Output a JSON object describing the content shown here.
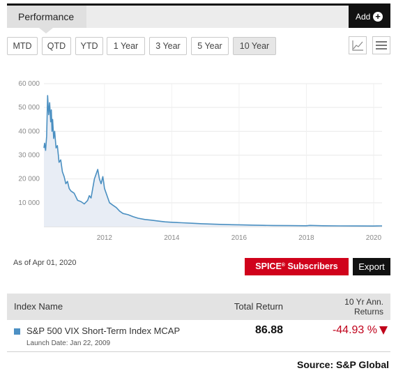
{
  "header": {
    "tab_label": "Performance",
    "add_label": "Add",
    "add_icon": "plus-circle-icon"
  },
  "periods": [
    "MTD",
    "QTD",
    "YTD",
    "1 Year",
    "3 Year",
    "5 Year",
    "10 Year"
  ],
  "active_period": "10 Year",
  "view_buttons": [
    "line-chart-icon",
    "menu-icon"
  ],
  "chart_data": {
    "type": "area",
    "title": "",
    "xlabel": "",
    "ylabel": "",
    "x_ticks": [
      "2012",
      "2014",
      "2016",
      "2018",
      "2020"
    ],
    "y_ticks": [
      "60 000",
      "50 000",
      "40 000",
      "30 000",
      "20 000",
      "10 000"
    ],
    "ylim": [
      0,
      60000
    ],
    "xlim": [
      2010.2,
      2020.25
    ],
    "grid": true,
    "color": "#4a8fc1",
    "fill": "#e8edf5",
    "series": [
      {
        "name": "",
        "x": [
          2010.2,
          2010.22,
          2010.25,
          2010.28,
          2010.31,
          2010.34,
          2010.37,
          2010.4,
          2010.42,
          2010.44,
          2010.46,
          2010.49,
          2010.52,
          2010.56,
          2010.6,
          2010.65,
          2010.7,
          2010.75,
          2010.8,
          2010.85,
          2010.9,
          2010.95,
          2011.0,
          2011.1,
          2011.2,
          2011.3,
          2011.4,
          2011.5,
          2011.55,
          2011.6,
          2011.65,
          2011.7,
          2011.75,
          2011.8,
          2011.85,
          2011.9,
          2011.95,
          2012.0,
          2012.05,
          2012.1,
          2012.15,
          2012.25,
          2012.35,
          2012.45,
          2012.55,
          2012.7,
          2012.85,
          2013.0,
          2013.2,
          2013.4,
          2013.6,
          2013.8,
          2014.0,
          2014.3,
          2014.6,
          2014.9,
          2015.2,
          2015.5,
          2015.8,
          2016.1,
          2016.4,
          2016.7,
          2017.0,
          2017.5,
          2018.0,
          2018.1,
          2018.5,
          2019.0,
          2019.5,
          2020.0,
          2020.1,
          2020.2,
          2020.25
        ],
        "values": [
          33000,
          35000,
          32000,
          38000,
          55000,
          47000,
          52000,
          44000,
          49000,
          40000,
          45000,
          37000,
          40000,
          33000,
          34000,
          27000,
          28000,
          23000,
          21000,
          18000,
          19000,
          16000,
          15000,
          14000,
          11000,
          10500,
          9500,
          11000,
          13000,
          12000,
          16000,
          20000,
          22000,
          24000,
          20000,
          18000,
          21000,
          16000,
          14000,
          12000,
          10000,
          9000,
          8000,
          6500,
          5500,
          5000,
          4200,
          3500,
          3000,
          2700,
          2300,
          2000,
          1800,
          1600,
          1400,
          1200,
          1050,
          900,
          800,
          700,
          600,
          520,
          460,
          400,
          360,
          500,
          340,
          300,
          260,
          230,
          260,
          300,
          280
        ]
      }
    ]
  },
  "as_of": "As of Apr 01, 2020",
  "spice_label": "SPICE",
  "spice_reg": "®",
  "spice_suffix": " Subscribers",
  "export_label": "Export",
  "table": {
    "col_name": "Index Name",
    "col_total": "Total Return",
    "col_ann_line1": "10 Yr Ann.",
    "col_ann_line2": "Returns",
    "rows": [
      {
        "name": "S&P 500 VIX Short-Term Index MCAP",
        "launch": "Launch Date: Jan 22, 2009",
        "total_return": "86.88",
        "ann_return": "-44.93 %",
        "series_color": "#4d90c4",
        "ann_color": "#c0001a",
        "trend_icon": "down-triangle-icon"
      }
    ]
  },
  "source": "Source: S&P Global"
}
